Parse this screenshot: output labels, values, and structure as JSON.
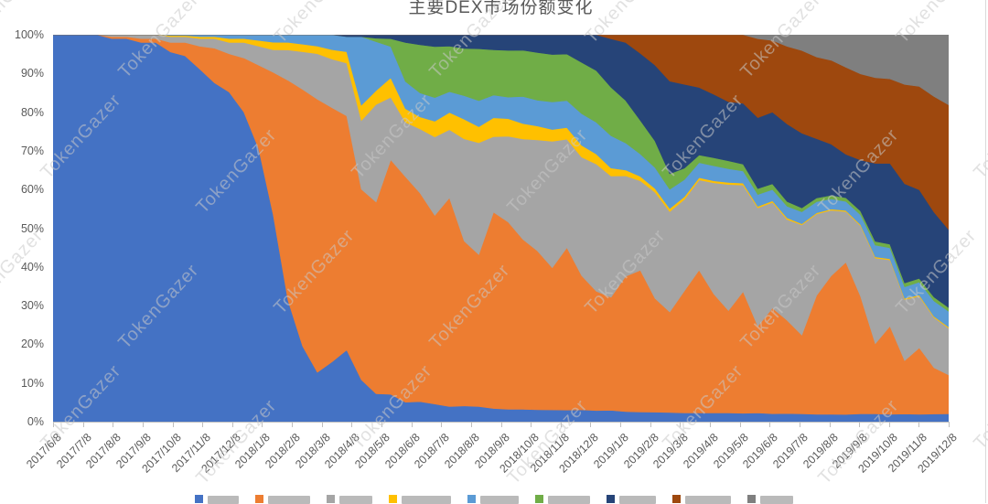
{
  "page": {
    "background": "#ffffff"
  },
  "chart": {
    "title": "主要DEX市场份额变化",
    "title_color": "#595959",
    "watermark_text": "TokenGazer",
    "axis": {
      "y_ticks": [
        "100%",
        "90%",
        "80%",
        "70%",
        "60%",
        "50%",
        "40%",
        "30%",
        "20%",
        "10%",
        "0%"
      ],
      "x_ticks": [
        "2017/6/8",
        "2017/7/8",
        "2017/8/8",
        "2017/9/8",
        "2017/10/8",
        "2017/11/8",
        "2017/12/8",
        "2018/1/8",
        "2018/2/8",
        "2018/3/8",
        "2018/4/8",
        "2018/5/8",
        "2018/6/8",
        "2018/7/8",
        "2018/8/8",
        "2018/9/8",
        "2018/10/8",
        "2018/11/8",
        "2018/12/8",
        "2019/1/8",
        "2019/2/8",
        "2019/3/8",
        "2019/4/8",
        "2019/5/8",
        "2019/6/8",
        "2019/7/8",
        "2019/8/8",
        "2019/9/8",
        "2019/10/8",
        "2019/11/8",
        "2019/12/8"
      ],
      "tick_color": "#bfbfbf",
      "label_color": "#595959"
    },
    "legend": {
      "position": "bottom",
      "truncated": true,
      "note": "legend row is cut off by the bottom edge of the screenshot; only the tops of the color markers and label text are visible, labels are illegible",
      "items": [
        {
          "color": "#4472C4",
          "label": ""
        },
        {
          "color": "#ED7D31",
          "label": ""
        },
        {
          "color": "#A5A5A5",
          "label": ""
        },
        {
          "color": "#FFC000",
          "label": ""
        },
        {
          "color": "#5B9BD5",
          "label": ""
        },
        {
          "color": "#70AD47",
          "label": ""
        },
        {
          "color": "#264478",
          "label": ""
        },
        {
          "color": "#9E480E",
          "label": ""
        },
        {
          "color": "#7F7F7F",
          "label": ""
        }
      ]
    }
  },
  "chart_data": {
    "type": "area",
    "stacking": "percent",
    "title": "主要DEX市场份额变化",
    "xlabel": "",
    "ylabel": "",
    "ylim": [
      0,
      100
    ],
    "y_tick_step": 10,
    "grid": false,
    "legend_position": "bottom",
    "x_categories": [
      "2017/6/8",
      "2017/7/8",
      "2017/8/8",
      "2017/9/8",
      "2017/10/8",
      "2017/11/8",
      "2017/12/8",
      "2018/1/8",
      "2018/2/8",
      "2018/3/8",
      "2018/4/8",
      "2018/5/8",
      "2018/6/8",
      "2018/7/8",
      "2018/8/8",
      "2018/9/8",
      "2018/10/8",
      "2018/11/8",
      "2018/12/8",
      "2019/1/8",
      "2019/2/8",
      "2019/3/8",
      "2019/4/8",
      "2019/5/8",
      "2019/6/8",
      "2019/7/8",
      "2019/8/8",
      "2019/9/8",
      "2019/10/8",
      "2019/11/8",
      "2019/12/8"
    ],
    "points_per_category_interval": 2,
    "note": "Approximate share (%) read from the 100%-stacked area chart at half-month resolution (62 points, 2 per labeled month). Series names are cropped out of the screenshot, so series are identified by stack position and color. Values are normalized to 100% per time step when rendered.",
    "series": [
      {
        "name": "series-1-blue",
        "color": "#4472C4",
        "values": [
          100,
          100,
          100,
          100,
          99,
          99,
          98,
          98,
          96,
          95,
          92,
          88,
          86,
          80,
          72,
          55,
          32,
          20,
          13,
          16,
          19,
          11,
          8,
          7,
          5,
          5,
          4.5,
          4,
          4,
          3.8,
          3.5,
          3.2,
          3.2,
          3,
          3,
          3,
          3,
          2.8,
          2.8,
          2.6,
          2.6,
          2.5,
          2.4,
          2.3,
          2.3,
          2.2,
          2.2,
          2.2,
          2.2,
          2.1,
          2.1,
          2,
          2,
          2,
          2,
          2,
          2,
          2,
          2,
          2,
          2,
          2
        ]
      },
      {
        "name": "series-2-orange",
        "color": "#ED7D31",
        "values": [
          0,
          0,
          0,
          0,
          0.5,
          0.5,
          1,
          1,
          2.5,
          3.5,
          6,
          9,
          10,
          14,
          22,
          38,
          58,
          68,
          72,
          68,
          62,
          50,
          55,
          60,
          58,
          52,
          48,
          55,
          42,
          38,
          52,
          48,
          44,
          40,
          36,
          42,
          34,
          30,
          28,
          35,
          38,
          30,
          26,
          32,
          38,
          30,
          26,
          32,
          22,
          28,
          24,
          20,
          32,
          38,
          42,
          30,
          18,
          24,
          14,
          18,
          12,
          10
        ]
      },
      {
        "name": "series-3-gray",
        "color": "#A5A5A5",
        "values": [
          0,
          0,
          0,
          0,
          0.5,
          0.5,
          1,
          1,
          1.5,
          1.5,
          2,
          2.5,
          3,
          4,
          5,
          6,
          8,
          10,
          12,
          13,
          14,
          18,
          28,
          16,
          14,
          16,
          20,
          18,
          26,
          28,
          20,
          22,
          26,
          28,
          32,
          28,
          30,
          32,
          30,
          26,
          24,
          28,
          26,
          24,
          24,
          28,
          32,
          28,
          30,
          28,
          26,
          28,
          22,
          18,
          14,
          18,
          22,
          18,
          16,
          14,
          13,
          12
        ]
      },
      {
        "name": "series-4-yellow",
        "color": "#FFC000",
        "values": [
          0,
          0,
          0,
          0,
          0,
          0,
          0,
          0,
          0.3,
          0.3,
          0.5,
          0.5,
          1,
          1,
          1.5,
          2,
          2,
          2,
          2,
          2.5,
          3,
          4,
          4,
          5,
          3.5,
          3,
          4,
          4.5,
          5,
          4,
          5,
          4.5,
          4,
          3.5,
          3,
          3,
          3,
          2.5,
          2,
          1.5,
          1.2,
          1,
          0.8,
          0.7,
          0.6,
          0.5,
          0.5,
          0.5,
          0.4,
          0.4,
          0.4,
          0.3,
          0.3,
          0.3,
          0.3,
          0.3,
          0.3,
          0.3,
          0.3,
          0.3,
          0.3,
          0.3
        ]
      },
      {
        "name": "series-5-lightblue",
        "color": "#5B9BD5",
        "values": [
          0,
          0,
          0,
          0,
          0,
          0,
          0,
          0,
          0.2,
          0.2,
          0.5,
          0.5,
          1,
          1,
          1.5,
          2,
          2,
          2.5,
          3,
          4,
          4,
          18,
          14,
          8,
          7,
          6,
          6,
          5.5,
          6,
          6.5,
          6,
          5.5,
          7,
          6.5,
          7,
          7,
          8,
          8,
          8,
          7,
          6,
          5.5,
          5,
          4.5,
          4,
          3.8,
          3.5,
          3.2,
          3,
          3,
          3,
          3,
          3,
          2.8,
          2.5,
          2.5,
          3,
          3,
          3,
          3.5,
          4,
          4
        ]
      },
      {
        "name": "series-6-green",
        "color": "#70AD47",
        "values": [
          0,
          0,
          0,
          0,
          0,
          0,
          0,
          0,
          0,
          0,
          0,
          0,
          0,
          0,
          0,
          0,
          0,
          0,
          0,
          0,
          0,
          0,
          1,
          2,
          10,
          12,
          13,
          12,
          12,
          13,
          12,
          12,
          12,
          12,
          12,
          12,
          13,
          13,
          12,
          11,
          9,
          7,
          4,
          3,
          2,
          2,
          2,
          1.8,
          1.5,
          1.5,
          1.2,
          1,
          1,
          1,
          1,
          1,
          1,
          1,
          1,
          1,
          1,
          1
        ]
      },
      {
        "name": "series-7-navy",
        "color": "#264478",
        "values": [
          0,
          0,
          0,
          0,
          0,
          0,
          0,
          0,
          0,
          0,
          0,
          0,
          0,
          0,
          0,
          0,
          0,
          0,
          0,
          0,
          0.5,
          0.5,
          1,
          1,
          2,
          2.5,
          3,
          3,
          3.5,
          3.5,
          4,
          4,
          4,
          4.5,
          5,
          5,
          7,
          9,
          12,
          15,
          18,
          20,
          24,
          22,
          18,
          16,
          15,
          16,
          18,
          19,
          20,
          19,
          16,
          14,
          12,
          13,
          20,
          22,
          26,
          24,
          22,
          20
        ]
      },
      {
        "name": "series-8-rust",
        "color": "#9E480E",
        "values": [
          0,
          0,
          0,
          0,
          0,
          0,
          0,
          0,
          0,
          0,
          0,
          0,
          0,
          0,
          0,
          0,
          0,
          0,
          0,
          0,
          0,
          0,
          0,
          0,
          0,
          0,
          0,
          0,
          0,
          0,
          0,
          0,
          0,
          0,
          0,
          0,
          0,
          0,
          1,
          2,
          5,
          8,
          12,
          13,
          14,
          15,
          17,
          18,
          20,
          19,
          20,
          21,
          22,
          23,
          24,
          22,
          22,
          23,
          26,
          28,
          30,
          32
        ]
      },
      {
        "name": "series-9-darkgray",
        "color": "#7F7F7F",
        "values": [
          0,
          0,
          0,
          0,
          0,
          0,
          0,
          0,
          0,
          0,
          0,
          0,
          0,
          0,
          0,
          0,
          0,
          0,
          0,
          0,
          0,
          0,
          0,
          0,
          0,
          0,
          0,
          0,
          0,
          0,
          0,
          0,
          0,
          0,
          0,
          0,
          0,
          0,
          0,
          0,
          0,
          0,
          0,
          0,
          0,
          0,
          0,
          0,
          1,
          1.5,
          3,
          4,
          6,
          7,
          9,
          10,
          11,
          12,
          13,
          14,
          16,
          18
        ]
      }
    ]
  }
}
